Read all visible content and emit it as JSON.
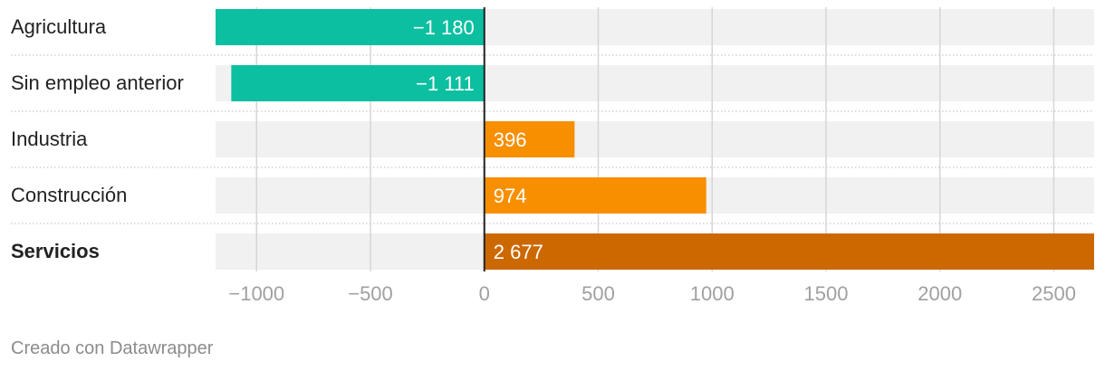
{
  "chart_data": {
    "type": "bar",
    "orientation": "horizontal",
    "categories": [
      "Agricultura",
      "Sin empleo anterior",
      "Industria",
      "Construcción",
      "Servicios"
    ],
    "values": [
      -1180,
      -1111,
      396,
      974,
      2677
    ],
    "value_labels": [
      "−1 180",
      "−1 111",
      "396",
      "974",
      "2 677"
    ],
    "bold_categories": [
      "Servicios"
    ],
    "bar_colors": [
      "#0bbfa0",
      "#0bbfa0",
      "#f78f00",
      "#f78f00",
      "#cc6800"
    ],
    "xlim": [
      -1180,
      2677
    ],
    "x_ticks": [
      -1000,
      -500,
      0,
      500,
      1000,
      1500,
      2000,
      2500
    ],
    "x_tick_labels": [
      "−1000",
      "−500",
      "0",
      "500",
      "1000",
      "1500",
      "2000",
      "2500"
    ],
    "grid": true,
    "background_band_color": "#f1f1f1",
    "title": "",
    "xlabel": "",
    "ylabel": ""
  },
  "footer": {
    "credit": "Creado con Datawrapper"
  }
}
